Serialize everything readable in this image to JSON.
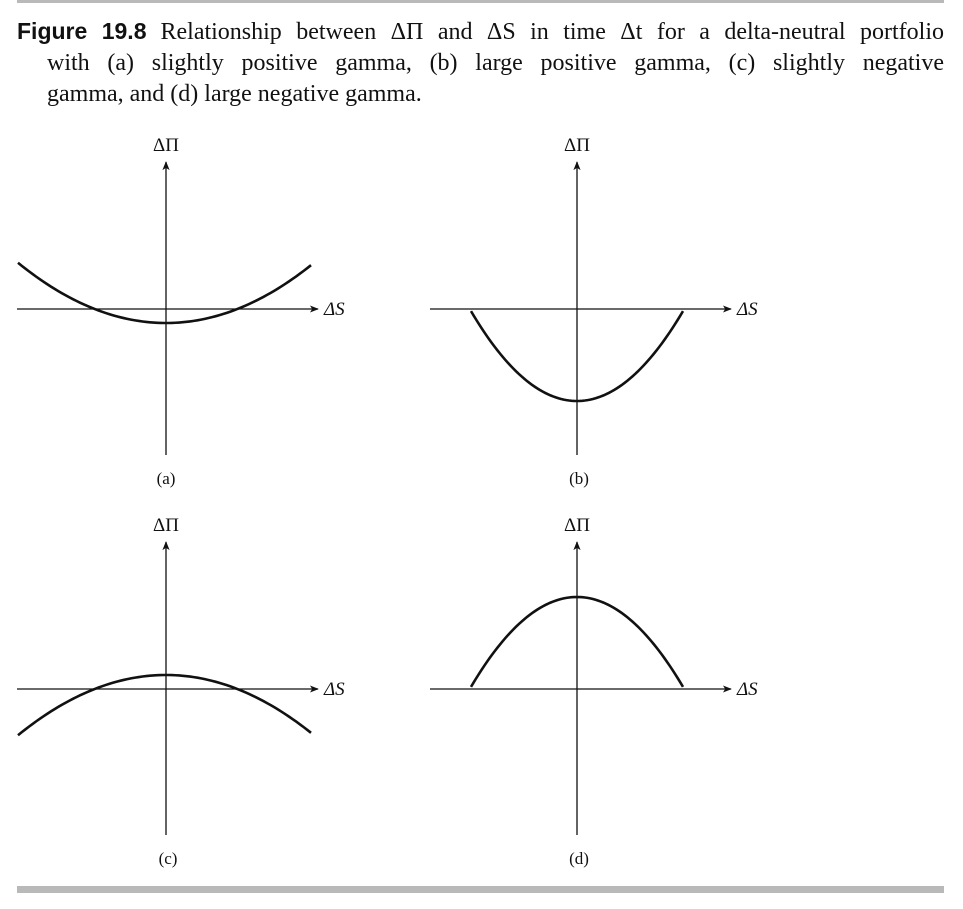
{
  "caption": {
    "label": "Figure",
    "number": "19.8",
    "line1": "Relationship between ΔΠ and ΔS in time Δt for a delta-neutral portfolio",
    "line2": "with (a) slightly positive gamma, (b) large positive gamma, (c) slightly negative",
    "line3": "gamma, and (d) large negative gamma."
  },
  "chart_data": [
    {
      "type": "line",
      "panel_label": "(a)",
      "xlabel": "ΔS",
      "ylabel": "ΔΠ",
      "shape": "parabola",
      "curvature": "slightly positive",
      "vertex_relative": -0.07,
      "curvature_relative": 0.55
    },
    {
      "type": "line",
      "panel_label": "(b)",
      "xlabel": "ΔS",
      "ylabel": "ΔΠ",
      "shape": "parabola",
      "curvature": "large positive",
      "vertex_relative": -0.46,
      "curvature_relative": 1.6
    },
    {
      "type": "line",
      "panel_label": "(c)",
      "xlabel": "ΔS",
      "ylabel": "ΔΠ",
      "shape": "parabola",
      "curvature": "slightly negative",
      "vertex_relative": 0.07,
      "curvature_relative": -0.55
    },
    {
      "type": "line",
      "panel_label": "(d)",
      "xlabel": "ΔS",
      "ylabel": "ΔΠ",
      "shape": "parabola",
      "curvature": "large negative",
      "vertex_relative": 0.46,
      "curvature_relative": -1.6
    }
  ]
}
